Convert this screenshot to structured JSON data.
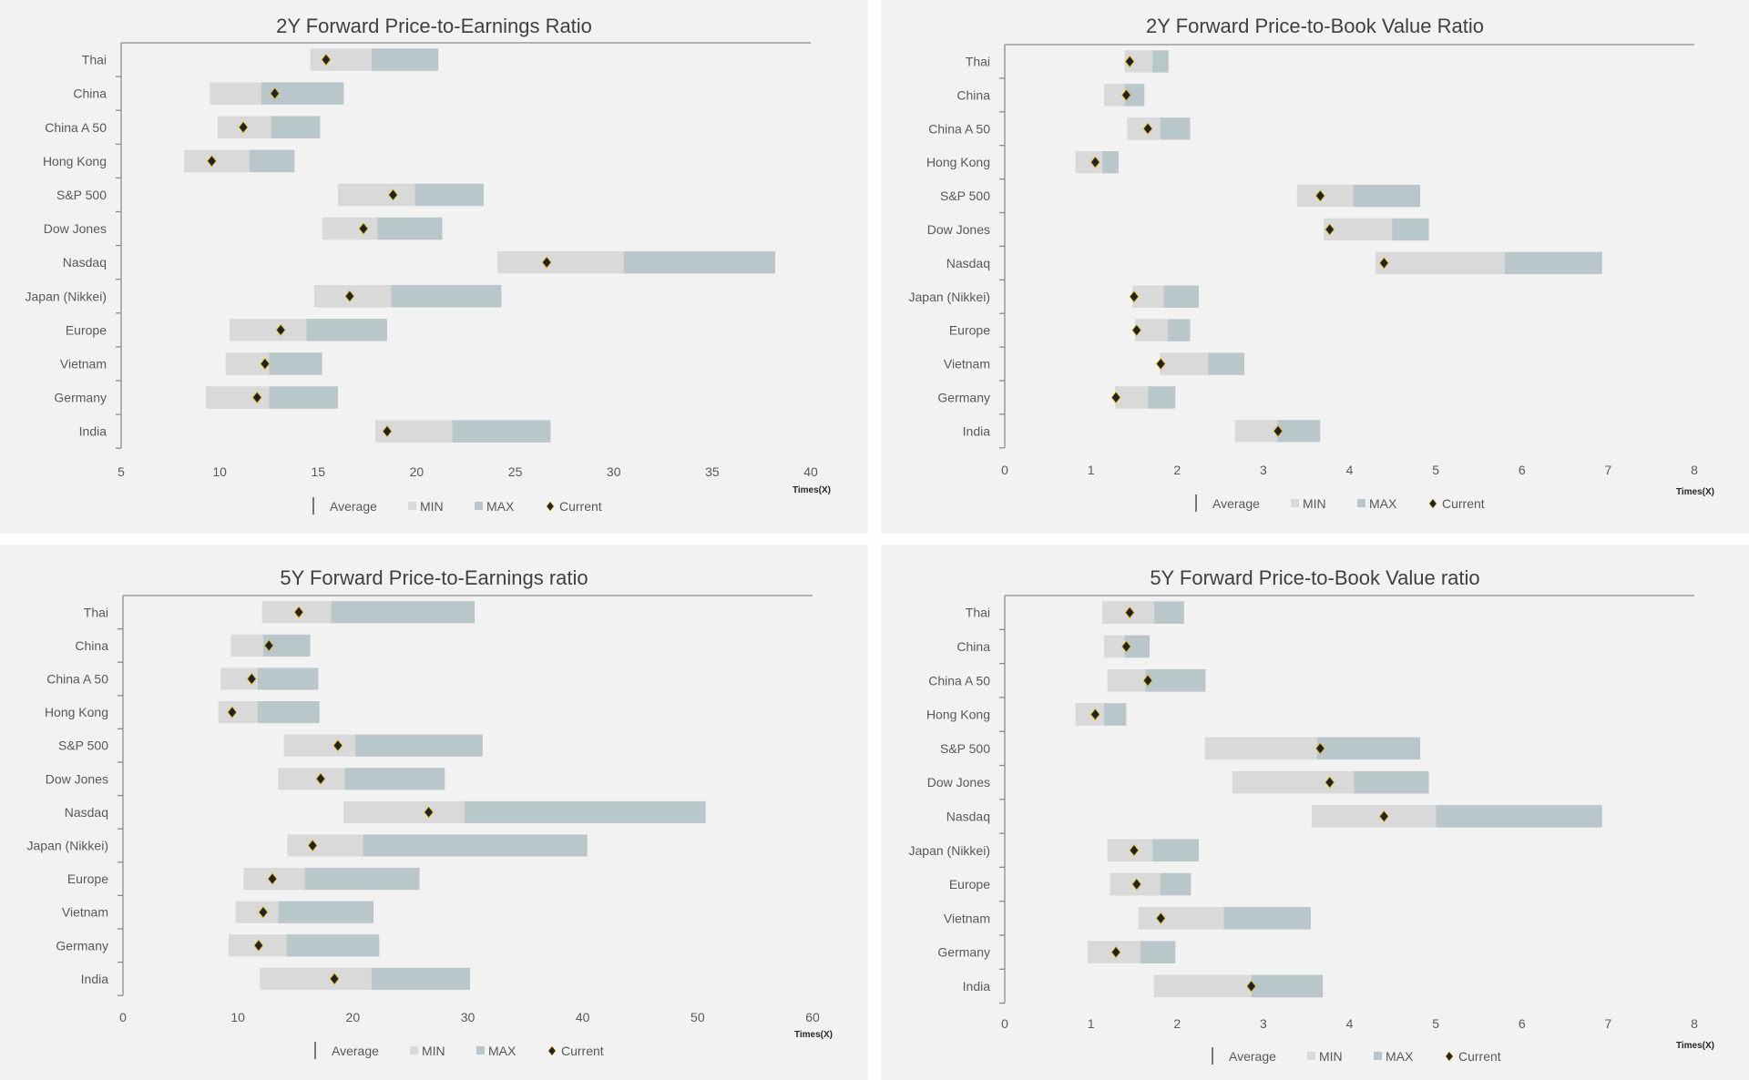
{
  "colors": {
    "panel_bg": "#f2f2f2",
    "min_bar": "#d9d9d9",
    "max_bar": "#b9c7cb",
    "current_marker": "#1f2328",
    "marker_outline": "#e0b000",
    "axis": "#7f7f7f"
  },
  "legend": {
    "average": "Average",
    "min": "MIN",
    "max": "MAX",
    "current": "Current"
  },
  "chart_data": [
    {
      "type": "bar",
      "subtype": "floating-range-with-marker",
      "title": "2Y Forward Price-to-Earnings Ratio",
      "xlabel": "Times(X)",
      "xlim": [
        5,
        40
      ],
      "xticks": [
        5,
        10,
        15,
        20,
        25,
        30,
        35,
        40
      ],
      "legend_position": "bottom",
      "categories": [
        "Thai",
        "China",
        "China A 50",
        "Hong Kong",
        "S&P 500",
        "Dow Jones",
        "Nasdaq",
        "Japan (Nikkei)",
        "Europe",
        "Vietnam",
        "Germany",
        "India"
      ],
      "series": [
        {
          "name": "MIN",
          "values": [
            14.6,
            9.5,
            9.9,
            8.2,
            16.0,
            15.2,
            24.1,
            14.8,
            10.5,
            10.3,
            9.3,
            17.9
          ]
        },
        {
          "name": "Average",
          "values": [
            17.7,
            12.1,
            12.6,
            11.5,
            19.9,
            18.0,
            30.5,
            18.7,
            14.4,
            12.5,
            12.5,
            21.8
          ]
        },
        {
          "name": "MAX",
          "values": [
            21.1,
            16.3,
            15.1,
            13.8,
            23.4,
            21.3,
            38.2,
            24.3,
            18.5,
            15.2,
            16.0,
            26.8
          ]
        },
        {
          "name": "Current",
          "values": [
            15.4,
            12.8,
            11.2,
            9.6,
            18.8,
            17.3,
            26.6,
            16.6,
            13.1,
            12.3,
            11.9,
            18.5
          ]
        }
      ]
    },
    {
      "type": "bar",
      "subtype": "floating-range-with-marker",
      "title": "2Y Forward Price-to-Book Value Ratio",
      "xlabel": "Times(X)",
      "xlim": [
        0,
        8
      ],
      "xticks": [
        0,
        1,
        2,
        3,
        4,
        5,
        6,
        7,
        8
      ],
      "legend_position": "bottom",
      "categories": [
        "Thai",
        "China",
        "China A 50",
        "Hong Kong",
        "S&P 500",
        "Dow Jones",
        "Nasdaq",
        "Japan (Nikkei)",
        "Europe",
        "Vietnam",
        "Germany",
        "India"
      ],
      "series": [
        {
          "name": "MIN",
          "values": [
            1.39,
            1.15,
            1.42,
            0.82,
            3.39,
            3.7,
            4.3,
            1.48,
            1.51,
            1.8,
            1.28,
            2.67
          ]
        },
        {
          "name": "Average",
          "values": [
            1.71,
            1.39,
            1.8,
            1.13,
            4.04,
            4.49,
            5.8,
            1.84,
            1.89,
            2.36,
            1.66,
            3.16
          ]
        },
        {
          "name": "MAX",
          "values": [
            1.9,
            1.62,
            2.15,
            1.32,
            4.82,
            4.92,
            6.93,
            2.25,
            2.15,
            2.78,
            1.98,
            3.66
          ]
        },
        {
          "name": "Current",
          "values": [
            1.45,
            1.41,
            1.66,
            1.05,
            3.66,
            3.77,
            4.4,
            1.5,
            1.53,
            1.81,
            1.29,
            3.17
          ]
        }
      ]
    },
    {
      "type": "bar",
      "subtype": "floating-range-with-marker",
      "title": "5Y Forward Price-to-Earnings ratio",
      "xlabel": "Times(X)",
      "xlim": [
        0,
        60
      ],
      "xticks": [
        0,
        10,
        20,
        30,
        40,
        50,
        60
      ],
      "legend_position": "bottom",
      "categories": [
        "Thai",
        "China",
        "China A 50",
        "Hong Kong",
        "S&P 500",
        "Dow Jones",
        "Nasdaq",
        "Japan (Nikkei)",
        "Europe",
        "Vietnam",
        "Germany",
        "India"
      ],
      "series": [
        {
          "name": "MIN",
          "values": [
            12.1,
            9.4,
            8.5,
            8.3,
            14.0,
            13.5,
            19.2,
            14.3,
            10.5,
            9.8,
            9.2,
            11.9
          ]
        },
        {
          "name": "Average",
          "values": [
            18.1,
            12.2,
            11.7,
            11.7,
            20.2,
            19.3,
            29.7,
            20.9,
            15.8,
            13.5,
            14.2,
            21.6
          ]
        },
        {
          "name": "MAX",
          "values": [
            30.6,
            16.3,
            17.0,
            17.1,
            31.3,
            28.0,
            50.7,
            40.4,
            25.8,
            21.8,
            22.3,
            30.2
          ]
        },
        {
          "name": "Current",
          "values": [
            15.3,
            12.7,
            11.2,
            9.5,
            18.7,
            17.2,
            26.6,
            16.5,
            13.0,
            12.2,
            11.8,
            18.4
          ]
        }
      ]
    },
    {
      "type": "bar",
      "subtype": "floating-range-with-marker",
      "title": "5Y Forward Price-to-Book Value ratio",
      "xlabel": "Times(X)",
      "xlim": [
        0,
        8
      ],
      "xticks": [
        0,
        1,
        2,
        3,
        4,
        5,
        6,
        7,
        8
      ],
      "legend_position": "bottom",
      "categories": [
        "Thai",
        "China",
        "China A 50",
        "Hong Kong",
        "S&P 500",
        "Dow Jones",
        "Nasdaq",
        "Japan (Nikkei)",
        "Europe",
        "Vietnam",
        "Germany",
        "India"
      ],
      "series": [
        {
          "name": "MIN",
          "values": [
            1.13,
            1.15,
            1.19,
            0.82,
            2.32,
            2.64,
            3.56,
            1.19,
            1.22,
            1.55,
            0.96,
            1.73
          ]
        },
        {
          "name": "Average",
          "values": [
            1.73,
            1.39,
            1.63,
            1.15,
            3.62,
            4.05,
            5.0,
            1.71,
            1.8,
            2.54,
            1.57,
            2.86
          ]
        },
        {
          "name": "MAX",
          "values": [
            2.08,
            1.68,
            2.33,
            1.41,
            4.82,
            4.92,
            6.93,
            2.25,
            2.16,
            3.55,
            1.98,
            3.69
          ]
        },
        {
          "name": "Current",
          "values": [
            1.45,
            1.41,
            1.66,
            1.05,
            3.66,
            3.77,
            4.4,
            1.5,
            1.53,
            1.81,
            1.29,
            2.86
          ]
        }
      ]
    }
  ]
}
